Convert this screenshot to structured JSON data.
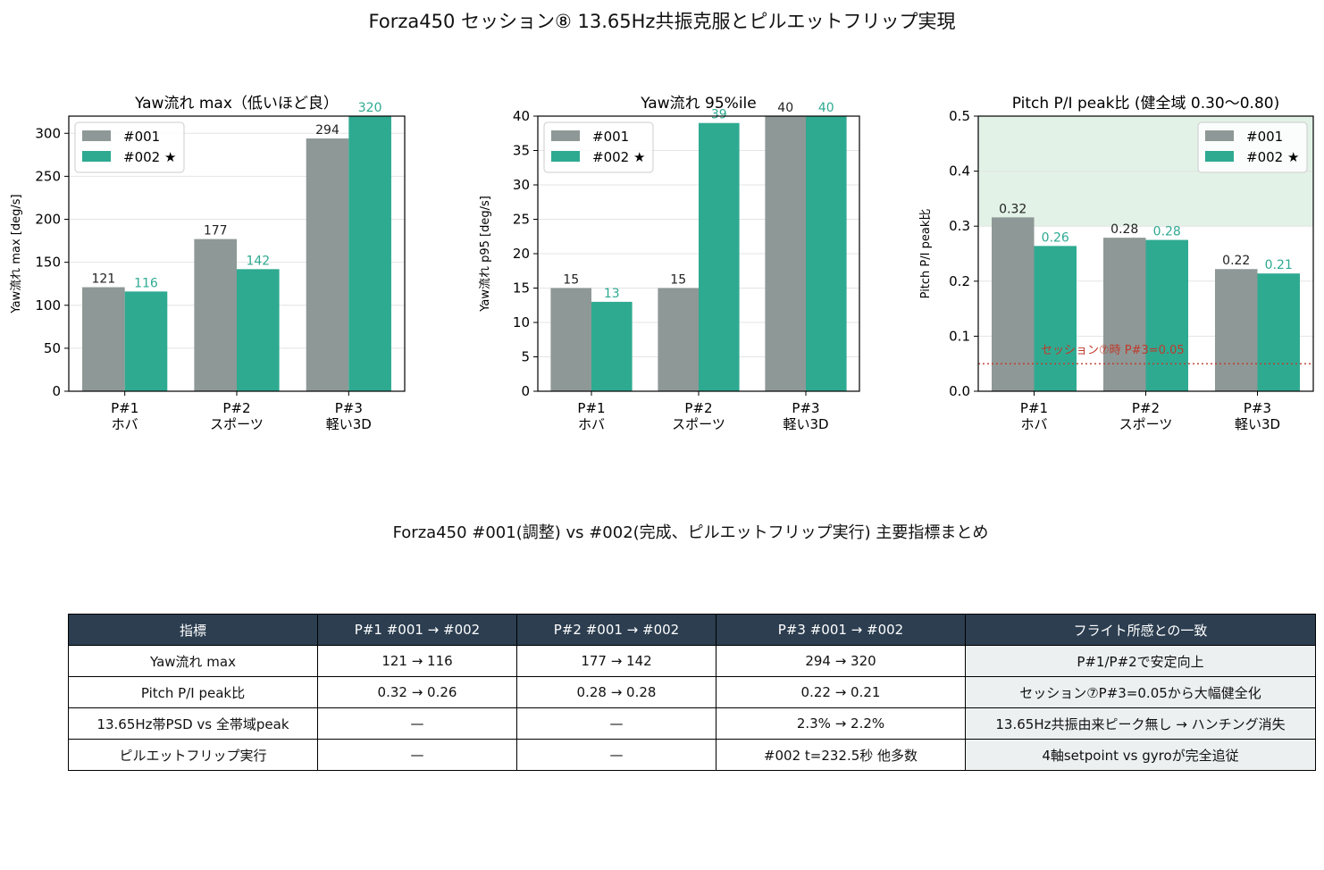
{
  "title": "Forza450 セッション⑧ 13.65Hz共振克服とピルエットフリップ実現",
  "colors": {
    "c001": "#8e9896",
    "c002": "#2eaa91",
    "healthy_band": "#e2f2e7",
    "ref_line": "#c0392b",
    "header_bg": "#2c3e50",
    "note_bg": "#ecf0f1"
  },
  "chart_data": [
    {
      "type": "bar",
      "title": "Yaw流れ max（低いほど良）",
      "ylabel": "Yaw流れ max [deg/s]",
      "categories": [
        "P#1\nホバ",
        "P#2\nスポーツ",
        "P#3\n軽い3D"
      ],
      "series": [
        {
          "name": "#001",
          "values": [
            121,
            177,
            294
          ],
          "labels": [
            "121",
            "177",
            "294"
          ]
        },
        {
          "name": "#002 ★",
          "values": [
            116,
            142,
            320
          ],
          "labels": [
            "116",
            "142",
            "320"
          ]
        }
      ],
      "ylim": [
        0,
        320
      ],
      "yticks": [
        0,
        50,
        100,
        150,
        200,
        250,
        300
      ],
      "legend": "top-left",
      "grid": "y"
    },
    {
      "type": "bar",
      "title": "Yaw流れ 95%ile",
      "ylabel": "Yaw流れ p95 [deg/s]",
      "categories": [
        "P#1\nホバ",
        "P#2\nスポーツ",
        "P#3\n軽い3D"
      ],
      "series": [
        {
          "name": "#001",
          "values": [
            15,
            15,
            40
          ],
          "labels": [
            "15",
            "15",
            "40"
          ]
        },
        {
          "name": "#002 ★",
          "values": [
            13,
            39,
            40
          ],
          "labels": [
            "13",
            "39",
            "40"
          ]
        }
      ],
      "ylim": [
        0,
        40
      ],
      "yticks": [
        0,
        5,
        10,
        15,
        20,
        25,
        30,
        35,
        40
      ],
      "legend": "top-left",
      "grid": "y"
    },
    {
      "type": "bar",
      "title": "Pitch P/I peak比 (健全域 0.30〜0.80)",
      "ylabel": "Pitch P/I peak比",
      "categories": [
        "P#1\nホバ",
        "P#2\nスポーツ",
        "P#3\n軽い3D"
      ],
      "series": [
        {
          "name": "#001",
          "values": [
            0.316,
            0.279,
            0.222
          ],
          "labels": [
            "0.32",
            "0.28",
            "0.22"
          ]
        },
        {
          "name": "#002 ★",
          "values": [
            0.264,
            0.275,
            0.214
          ],
          "labels": [
            "0.26",
            "0.28",
            "0.21"
          ]
        }
      ],
      "ylim": [
        0,
        0.5
      ],
      "yticks": [
        "0.0",
        "0.1",
        "0.2",
        "0.3",
        "0.4",
        "0.5"
      ],
      "healthy_band": [
        0.3,
        0.8
      ],
      "reference": {
        "value": 0.05,
        "label": "セッション⑦時 P#3=0.05"
      },
      "legend": "top-right",
      "grid": "y"
    }
  ],
  "table": {
    "title": "Forza450 #001(調整) vs #002(完成、ピルエットフリップ実行) 主要指標まとめ",
    "headers": [
      "指標",
      "P#1 #001 → #002",
      "P#2 #001 → #002",
      "P#3 #001 → #002",
      "フライト所感との一致"
    ],
    "rows": [
      [
        "Yaw流れ max",
        "121 → 116",
        "177 → 142",
        "294 → 320",
        "P#1/P#2で安定向上"
      ],
      [
        "Pitch P/I peak比",
        "0.32 → 0.26",
        "0.28 → 0.28",
        "0.22 → 0.21",
        "セッション⑦P#3=0.05から大幅健全化"
      ],
      [
        "13.65Hz帯PSD vs 全帯域peak",
        "—",
        "—",
        "2.3% → 2.2%",
        "13.65Hz共振由来ピーク無し → ハンチング消失"
      ],
      [
        "ピルエットフリップ実行",
        "—",
        "—",
        "#002 t=232.5秒 他多数",
        "4軸setpoint vs gyroが完全追従"
      ]
    ]
  }
}
